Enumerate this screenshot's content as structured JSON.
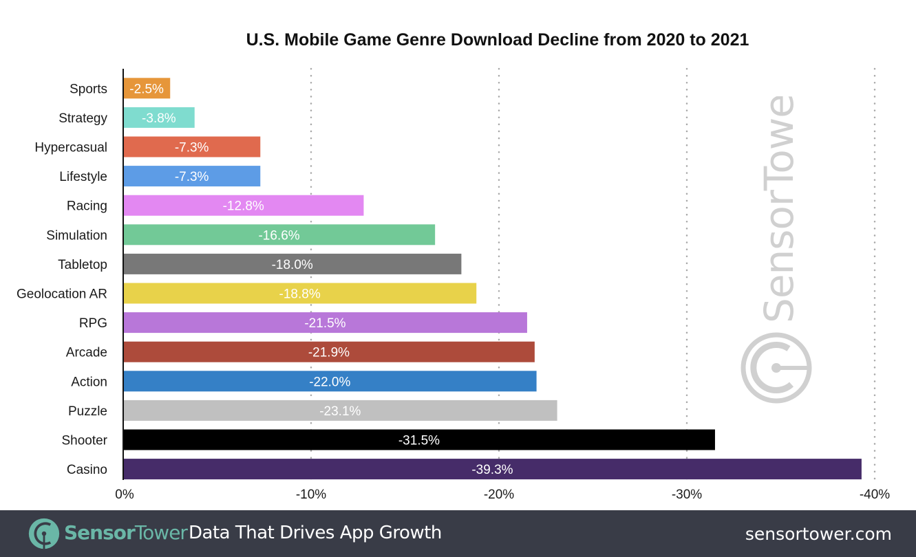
{
  "chart_data": {
    "type": "bar",
    "orientation": "horizontal",
    "title": "U.S. Mobile Game Genre Download Decline from 2020 to 2021",
    "xlabel": "",
    "ylabel": "",
    "xlim": [
      0,
      -40
    ],
    "x_ticks": [
      0,
      -10,
      -20,
      -30,
      -40
    ],
    "x_tick_labels": [
      "0%",
      "-10%",
      "-20%",
      "-30%",
      "-40%"
    ],
    "grid": "vertical dotted",
    "legend": "none",
    "categories": [
      "Sports",
      "Strategy",
      "Hypercasual",
      "Lifestyle",
      "Racing",
      "Simulation",
      "Tabletop",
      "Geolocation AR",
      "RPG",
      "Arcade",
      "Action",
      "Puzzle",
      "Shooter",
      "Casino"
    ],
    "values": [
      -2.5,
      -3.8,
      -7.3,
      -7.3,
      -12.8,
      -16.6,
      -18.0,
      -18.8,
      -21.5,
      -21.9,
      -22.0,
      -23.1,
      -31.5,
      -39.3
    ],
    "value_labels": [
      "-2.5%",
      "-3.8%",
      "-7.3%",
      "-7.3%",
      "-12.8%",
      "-16.6%",
      "-18.0%",
      "-18.8%",
      "-21.5%",
      "-21.9%",
      "-22.0%",
      "-23.1%",
      "-31.5%",
      "-39.3%"
    ],
    "colors": [
      "#e6963a",
      "#7fdccf",
      "#e06a4e",
      "#5d9ce6",
      "#e388f2",
      "#72c997",
      "#787878",
      "#e8d24a",
      "#b877d9",
      "#ad4b3b",
      "#3580c6",
      "#c0c0c0",
      "#000000",
      "#462c69"
    ]
  },
  "watermark": {
    "text": "SensorTower",
    "color": "#d0d0d0"
  },
  "footer": {
    "brand_part1": "Sensor",
    "brand_part2": "Tower",
    "tagline": "Data That Drives App Growth",
    "url": "sensortower.com",
    "background": "#393c47",
    "brand_color": "#6ab7a7"
  }
}
